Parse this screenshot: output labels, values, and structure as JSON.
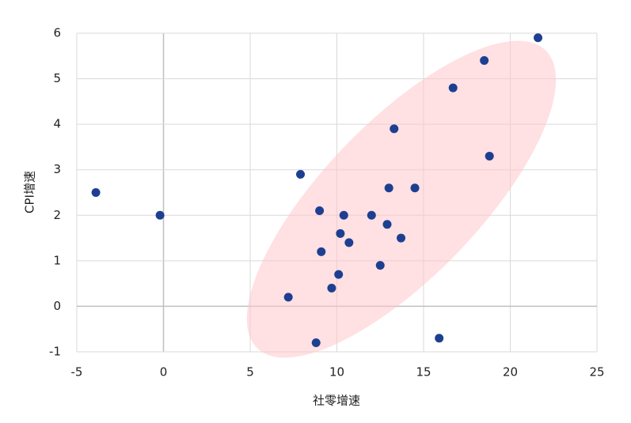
{
  "chart_data": {
    "type": "scatter",
    "x_label": "社零增速",
    "y_label": "CPI增速",
    "series": [
      {
        "color": "#1d3f91",
        "x": [
          -3.9,
          -0.2,
          7.9,
          7.2,
          8.8,
          9.0,
          9.1,
          9.7,
          10.1,
          10.2,
          10.4,
          10.7,
          12.0,
          12.5,
          12.9,
          13.0,
          13.3,
          13.7,
          14.5,
          15.9,
          16.7,
          18.5,
          18.8,
          21.6
        ],
        "values": [
          2.5,
          2.0,
          2.9,
          0.2,
          -0.8,
          2.1,
          1.2,
          0.4,
          0.7,
          1.6,
          2.0,
          1.4,
          2.0,
          0.9,
          1.8,
          2.6,
          3.9,
          1.5,
          2.6,
          -0.7,
          4.8,
          5.4,
          3.3,
          5.9
        ]
      }
    ],
    "xlim": [
      -5,
      25
    ],
    "xticks": [
      -5,
      0,
      5,
      10,
      15,
      20,
      25
    ],
    "ylim": [
      -1,
      6
    ],
    "yticks": [
      -1,
      0,
      1,
      2,
      3,
      4,
      5,
      6
    ],
    "grid": true
  }
}
